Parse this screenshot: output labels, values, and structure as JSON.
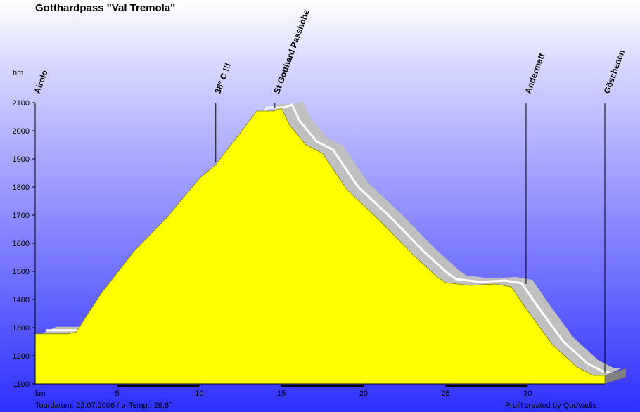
{
  "title": "Gotthardpass \"Val Tremola\"",
  "y_unit_label": "hm",
  "x_unit_label": "km",
  "footer": {
    "tour_info": "Tourdatum: 22.07.2006 / ø-Temp.: 29,6°",
    "credit": "Profil created by QuoVadis"
  },
  "chart_data": {
    "type": "area",
    "title": "Gotthardpass \"Val Tremola\"",
    "xlabel": "km",
    "ylabel": "hm",
    "xlim": [
      0,
      34.7
    ],
    "ylim": [
      1100,
      2100
    ],
    "xticks": [
      5,
      10,
      15,
      20,
      25,
      30
    ],
    "yticks": [
      1100,
      1200,
      1300,
      1400,
      1500,
      1600,
      1700,
      1800,
      1900,
      2000,
      2100
    ],
    "profile": {
      "x": [
        0,
        2.0,
        2.5,
        4.0,
        6.0,
        8.0,
        10.0,
        11.0,
        12.0,
        13.5,
        14.0,
        14.5,
        15.0,
        15.5,
        16.5,
        17.5,
        19.0,
        21.0,
        23.0,
        24.5,
        25.0,
        26.5,
        28.0,
        29.0,
        30.0,
        31.5,
        33.0,
        34.0,
        34.4
      ],
      "y": [
        1278,
        1278,
        1285,
        1420,
        1570,
        1690,
        1830,
        1880,
        1955,
        2070,
        2070,
        2070,
        2080,
        2020,
        1950,
        1920,
        1790,
        1680,
        1560,
        1480,
        1460,
        1450,
        1455,
        1445,
        1360,
        1240,
        1160,
        1130,
        1130
      ]
    },
    "markers": [
      {
        "label": "Airolo",
        "x": 0
      },
      {
        "label": "38° C !!!",
        "x": 11.0
      },
      {
        "label": "St Gotthard Passhöhe",
        "x": 14.6
      },
      {
        "label": "Andermatt",
        "x": 29.9
      },
      {
        "label": "Göschenen",
        "x": 34.7
      }
    ],
    "colors": {
      "fill": "#ffff00",
      "road_band": "#c0c0c0",
      "road_line": "#ffffff",
      "axis": "#000000",
      "km_bar": "#000000"
    }
  }
}
